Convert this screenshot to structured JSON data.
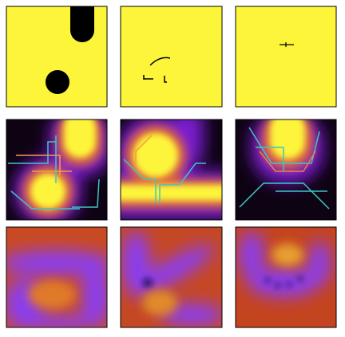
{
  "panels": [
    {
      "background": "#fdf53a"
    },
    {
      "background": "#fdf53a"
    },
    {
      "background": "#fdf53a"
    },
    {
      "background": "#0d0312"
    },
    {
      "background": "#0d0312"
    },
    {
      "background": "#0d0312"
    },
    {
      "background": "#c94a22"
    },
    {
      "background": "#c54824"
    },
    {
      "background": "#c4441f"
    }
  ]
}
